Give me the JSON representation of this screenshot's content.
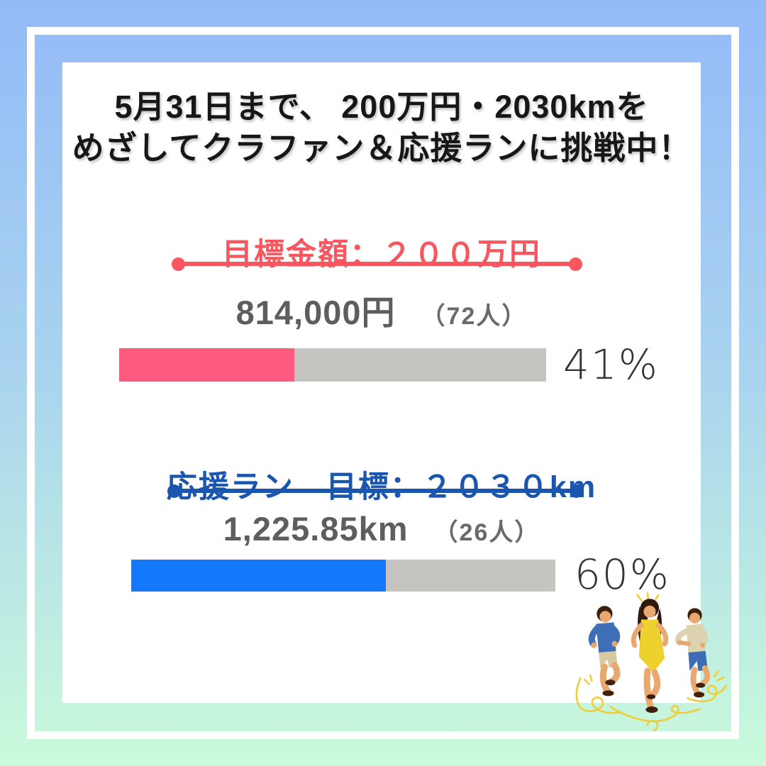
{
  "header": {
    "title_line1": "5月31日まで、 200万円・2030kmを",
    "title_line2": "めざしてクラファン＆応援ランに挑戦中！"
  },
  "sections": [
    {
      "heading": "目標金額：２００万円",
      "amount": "814,000円",
      "supporters": "（72人）",
      "percent_value": 41,
      "percent_label": "41%",
      "accent": "#F95660",
      "bar_fill": "#FC5A7E"
    },
    {
      "heading": "応援ラン　目標：２０３０km",
      "amount": "1,225.85km",
      "supporters": "（26人）",
      "percent_value": 60,
      "percent_label": "60%",
      "accent": "#1A55B0",
      "bar_fill": "#1478FA"
    }
  ],
  "colors": {
    "bg-top": "#94BAF8",
    "bg-mid": "#A9D3EF",
    "bg-bottom": "#CAFADB",
    "frame": "#FFFFFF",
    "card": "#FFFFFF",
    "track": "#C6C4C1",
    "title-text": "#171717",
    "amount-text": "#5E5E5E",
    "supporters-text": "#6A6A6A",
    "percent-text": "#333333"
  },
  "illustration": {
    "name": "three-runners",
    "palette": {
      "skin": "#E9A870",
      "hair": "#3A2010",
      "shirt_blue": "#3E6EB5",
      "dress_yellow": "#EFD12D",
      "shirt_beige": "#DCD2AF",
      "shorts_khaki": "#D7CAA3",
      "shorts_blue": "#3C6CB4",
      "shoes": "#40210E",
      "swirl_yellow": "#F1CD39"
    }
  },
  "chart_data": {
    "type": "bar",
    "title": "5月31日まで、 200万円・2030kmを めざしてクラファン＆応援ランに挑戦中！",
    "unit": "%",
    "xlim": [
      0,
      100
    ],
    "series": [
      {
        "name": "目標金額：２００万円",
        "current": "814,000円",
        "supporters": 72,
        "percent": 41
      },
      {
        "name": "応援ラン　目標：２０３０km",
        "current": "1,225.85km",
        "supporters": 26,
        "percent": 60
      }
    ],
    "legend": "none",
    "grid": false
  }
}
